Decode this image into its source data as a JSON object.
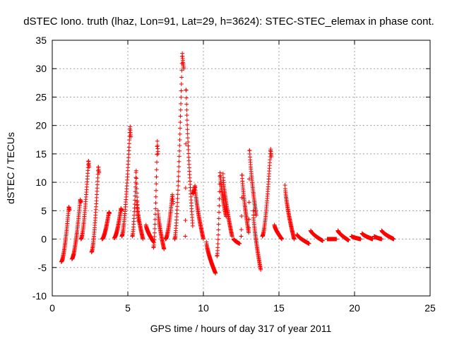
{
  "chart_data": {
    "type": "scatter",
    "title": "dSTEC Iono. truth (lhaz, Lon=91, Lat=29, h=3624): STEC-STEC_elemax in phase cont.",
    "xlabel": "GPS time / hours of day 317 of year 2011",
    "ylabel": "dSTEC  / TECUs",
    "xlim": [
      0,
      25
    ],
    "ylim": [
      -10,
      35
    ],
    "xticks": [
      "0",
      "5",
      "10",
      "15",
      "20",
      "25"
    ],
    "yticks": [
      "-10",
      "-5",
      "0",
      "5",
      "10",
      "15",
      "20",
      "25",
      "30",
      "35"
    ],
    "grid": true,
    "marker": "plus",
    "color": "#ff0000",
    "series": [
      {
        "arcs": [
          {
            "t0": 0.6,
            "t1": 1.15,
            "v0": -4.0,
            "peak": 5.8,
            "tp": 1.1,
            "v1": 5.0
          },
          {
            "t0": 1.3,
            "t1": 1.9,
            "v0": -3.5,
            "peak": 7.0,
            "tp": 1.85,
            "v1": 6.5
          },
          {
            "t0": 1.9,
            "t1": 2.45,
            "v0": 0.0,
            "peak": 14.0,
            "tp": 2.4,
            "v1": 12.5
          },
          {
            "t0": 2.6,
            "t1": 3.1,
            "v0": -2.3,
            "peak": 13.0,
            "tp": 3.05,
            "v1": 11.5
          },
          {
            "t0": 3.3,
            "t1": 3.8,
            "v0": 0.0,
            "peak": 4.8,
            "tp": 3.75,
            "v1": 4.5
          },
          {
            "t0": 4.1,
            "t1": 4.6,
            "v0": 0.2,
            "peak": 5.5,
            "tp": 4.55,
            "v1": 5.0
          },
          {
            "t0": 4.6,
            "t1": 5.2,
            "v0": 0.5,
            "peak": 20.0,
            "tp": 5.15,
            "v1": 18.0
          },
          {
            "t0": 5.3,
            "t1": 5.7,
            "v0": 0.5,
            "peak": 12.5,
            "tp": 5.55,
            "v1": 3.0
          },
          {
            "t0": 5.6,
            "t1": 6.0,
            "v0": 6.5,
            "peak": 6.5,
            "tp": 5.6,
            "v1": 0.0
          },
          {
            "t0": 6.2,
            "t1": 6.7,
            "v0": 2.5,
            "peak": 2.5,
            "tp": 6.2,
            "v1": -0.5
          },
          {
            "t0": 6.7,
            "t1": 7.0,
            "v0": -1.5,
            "peak": 17.5,
            "tp": 6.95,
            "v1": 15.0
          },
          {
            "t0": 7.0,
            "t1": 7.4,
            "v0": 5.0,
            "peak": 5.0,
            "tp": 7.0,
            "v1": -1.8
          },
          {
            "t0": 7.5,
            "t1": 8.0,
            "v0": 0.0,
            "peak": 8.0,
            "tp": 7.95,
            "v1": 6.0
          },
          {
            "t0": 8.1,
            "t1": 8.7,
            "v0": 0.0,
            "peak": 33.0,
            "tp": 8.6,
            "v1": 30.0
          },
          {
            "t0": 8.8,
            "t1": 9.3,
            "v0": 0.5,
            "peak": 28.0,
            "tp": 8.85,
            "v1": 2.0
          },
          {
            "t0": 9.3,
            "t1": 10.0,
            "v0": 8.0,
            "peak": 9.5,
            "tp": 9.45,
            "v1": 0.0
          },
          {
            "t0": 10.2,
            "t1": 10.8,
            "v0": -0.5,
            "peak": -0.5,
            "tp": 10.2,
            "v1": -6.0
          },
          {
            "t0": 10.9,
            "t1": 11.5,
            "v0": -3.0,
            "peak": 12.0,
            "tp": 11.1,
            "v1": 4.0
          },
          {
            "t0": 11.3,
            "t1": 11.9,
            "v0": 11.5,
            "peak": 11.5,
            "tp": 11.3,
            "v1": 0.5
          },
          {
            "t0": 12.0,
            "t1": 12.4,
            "v0": 0.0,
            "peak": 0.0,
            "tp": 12.0,
            "v1": -0.8
          },
          {
            "t0": 12.5,
            "t1": 13.0,
            "v0": 0.5,
            "peak": 12.0,
            "tp": 12.55,
            "v1": 1.0
          },
          {
            "t0": 13.0,
            "t1": 13.5,
            "v0": 2.0,
            "peak": 16.5,
            "tp": 13.05,
            "v1": 4.0
          },
          {
            "t0": 13.3,
            "t1": 13.8,
            "v0": 5.0,
            "peak": 5.0,
            "tp": 13.3,
            "v1": -5.5
          },
          {
            "t0": 13.9,
            "t1": 14.5,
            "v0": 0.5,
            "peak": 16.0,
            "tp": 14.45,
            "v1": 14.5
          },
          {
            "t0": 14.7,
            "t1": 15.2,
            "v0": 2.5,
            "peak": 2.5,
            "tp": 14.7,
            "v1": 0.0
          },
          {
            "t0": 15.4,
            "t1": 16.0,
            "v0": 9.5,
            "peak": 9.5,
            "tp": 15.4,
            "v1": 0.0
          },
          {
            "t0": 16.2,
            "t1": 17.0,
            "v0": 0.8,
            "peak": 0.8,
            "tp": 16.2,
            "v1": -0.8
          },
          {
            "t0": 17.1,
            "t1": 17.9,
            "v0": 1.5,
            "peak": 1.5,
            "tp": 17.1,
            "v1": -0.3
          },
          {
            "t0": 18.2,
            "t1": 18.8,
            "v0": 0.0,
            "peak": 0.0,
            "tp": 18.2,
            "v1": 0.0
          },
          {
            "t0": 18.9,
            "t1": 19.6,
            "v0": 1.5,
            "peak": 1.5,
            "tp": 18.9,
            "v1": -0.2
          },
          {
            "t0": 19.8,
            "t1": 20.4,
            "v0": 0.5,
            "peak": 0.5,
            "tp": 19.8,
            "v1": 0.0
          },
          {
            "t0": 20.5,
            "t1": 21.2,
            "v0": 1.0,
            "peak": 1.0,
            "tp": 20.5,
            "v1": 0.0
          },
          {
            "t0": 21.3,
            "t1": 21.8,
            "v0": 0.5,
            "peak": 0.5,
            "tp": 21.3,
            "v1": 0.0
          },
          {
            "t0": 21.8,
            "t1": 22.6,
            "v0": 1.5,
            "peak": 1.5,
            "tp": 21.8,
            "v1": 0.0
          }
        ]
      }
    ]
  }
}
